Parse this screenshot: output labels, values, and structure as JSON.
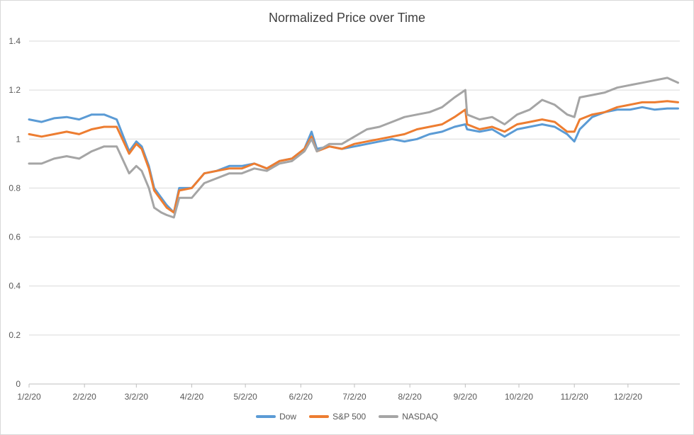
{
  "chart_data": {
    "type": "line",
    "title": "Normalized Price over Time",
    "xlabel": "",
    "ylabel": "",
    "ylim": [
      0,
      1.4
    ],
    "yticks": [
      "0",
      "0.2",
      "0.4",
      "0.6",
      "0.8",
      "1",
      "1.2",
      "1.4"
    ],
    "xticks": [
      "1/2/20",
      "2/2/20",
      "3/2/20",
      "4/2/20",
      "5/2/20",
      "6/2/20",
      "7/2/20",
      "8/2/20",
      "9/2/20",
      "10/2/20",
      "11/2/20",
      "12/2/20"
    ],
    "grid": true,
    "legend_position": "bottom",
    "x": [
      "1/2/20",
      "1/9/20",
      "1/16/20",
      "1/23/20",
      "1/30/20",
      "2/6/20",
      "2/13/20",
      "2/20/20",
      "2/27/20",
      "3/2/20",
      "3/5/20",
      "3/9/20",
      "3/12/20",
      "3/16/20",
      "3/19/20",
      "3/23/20",
      "3/26/20",
      "4/2/20",
      "4/9/20",
      "4/16/20",
      "4/23/20",
      "4/30/20",
      "5/7/20",
      "5/14/20",
      "5/21/20",
      "5/28/20",
      "6/4/20",
      "6/8/20",
      "6/11/20",
      "6/18/20",
      "6/25/20",
      "7/2/20",
      "7/9/20",
      "7/16/20",
      "7/23/20",
      "7/30/20",
      "8/6/20",
      "8/13/20",
      "8/20/20",
      "8/27/20",
      "9/2/20",
      "9/3/20",
      "9/10/20",
      "9/17/20",
      "9/24/20",
      "10/1/20",
      "10/8/20",
      "10/15/20",
      "10/22/20",
      "10/29/20",
      "11/2/20",
      "11/5/20",
      "11/12/20",
      "11/19/20",
      "11/26/20",
      "12/3/20",
      "12/10/20",
      "12/17/20",
      "12/24/20",
      "12/30/20"
    ],
    "series": [
      {
        "name": "Dow",
        "color": "#5b9bd5",
        "values": [
          1.08,
          1.07,
          1.085,
          1.09,
          1.08,
          1.1,
          1.1,
          1.08,
          0.95,
          0.99,
          0.97,
          0.89,
          0.8,
          0.76,
          0.73,
          0.7,
          0.8,
          0.8,
          0.86,
          0.87,
          0.89,
          0.89,
          0.9,
          0.88,
          0.91,
          0.92,
          0.96,
          1.03,
          0.96,
          0.97,
          0.96,
          0.97,
          0.98,
          0.99,
          1.0,
          0.99,
          1.0,
          1.02,
          1.03,
          1.05,
          1.06,
          1.04,
          1.03,
          1.04,
          1.01,
          1.04,
          1.05,
          1.06,
          1.05,
          1.02,
          0.99,
          1.04,
          1.09,
          1.11,
          1.12,
          1.12,
          1.13,
          1.12,
          1.125,
          1.125
        ]
      },
      {
        "name": "S&P 500",
        "color": "#ed7d31",
        "values": [
          1.02,
          1.01,
          1.02,
          1.03,
          1.02,
          1.04,
          1.05,
          1.05,
          0.94,
          0.98,
          0.96,
          0.88,
          0.79,
          0.75,
          0.72,
          0.7,
          0.79,
          0.8,
          0.86,
          0.87,
          0.88,
          0.88,
          0.9,
          0.88,
          0.91,
          0.92,
          0.96,
          1.01,
          0.95,
          0.97,
          0.96,
          0.98,
          0.99,
          1.0,
          1.01,
          1.02,
          1.04,
          1.05,
          1.06,
          1.09,
          1.12,
          1.06,
          1.04,
          1.05,
          1.03,
          1.06,
          1.07,
          1.08,
          1.07,
          1.03,
          1.03,
          1.08,
          1.1,
          1.11,
          1.13,
          1.14,
          1.15,
          1.15,
          1.155,
          1.15
        ]
      },
      {
        "name": "NASDAQ",
        "color": "#a5a5a5",
        "values": [
          0.9,
          0.9,
          0.92,
          0.93,
          0.92,
          0.95,
          0.97,
          0.97,
          0.86,
          0.89,
          0.87,
          0.8,
          0.72,
          0.7,
          0.69,
          0.68,
          0.76,
          0.76,
          0.82,
          0.84,
          0.86,
          0.86,
          0.88,
          0.87,
          0.9,
          0.91,
          0.95,
          1.0,
          0.95,
          0.98,
          0.98,
          1.01,
          1.04,
          1.05,
          1.07,
          1.09,
          1.1,
          1.11,
          1.13,
          1.17,
          1.2,
          1.1,
          1.08,
          1.09,
          1.06,
          1.1,
          1.12,
          1.16,
          1.14,
          1.1,
          1.09,
          1.17,
          1.18,
          1.19,
          1.21,
          1.22,
          1.23,
          1.24,
          1.25,
          1.23
        ]
      }
    ]
  }
}
